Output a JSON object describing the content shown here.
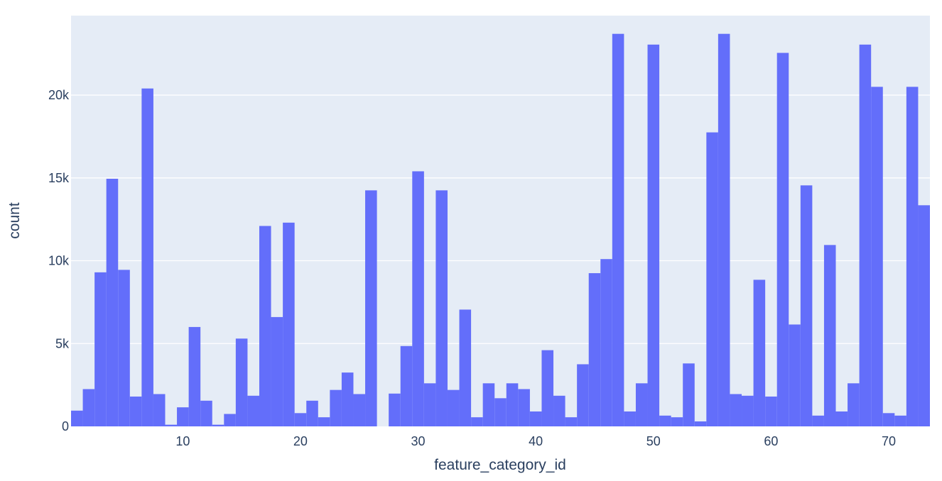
{
  "chart_data": {
    "type": "bar",
    "xlabel": "feature_category_id",
    "ylabel": "count",
    "xlim": [
      0.5,
      73.5
    ],
    "ylim": [
      0,
      24800
    ],
    "grid": true,
    "bar_color": "#636efa",
    "plot_bg": "#e5ecf6",
    "text_color": "#2a3f5f",
    "x_ticks": [
      10,
      20,
      30,
      40,
      50,
      60,
      70
    ],
    "x_tick_labels": [
      "10",
      "20",
      "30",
      "40",
      "50",
      "60",
      "70"
    ],
    "y_ticks": [
      0,
      5000,
      10000,
      15000,
      20000
    ],
    "y_tick_labels": [
      "0",
      "5k",
      "10k",
      "15k",
      "20k"
    ],
    "categories": [
      1,
      2,
      3,
      4,
      5,
      6,
      7,
      8,
      9,
      10,
      11,
      12,
      13,
      14,
      15,
      16,
      17,
      18,
      19,
      20,
      21,
      22,
      23,
      24,
      25,
      26,
      27,
      28,
      29,
      30,
      31,
      32,
      33,
      34,
      35,
      36,
      37,
      38,
      39,
      40,
      41,
      42,
      43,
      44,
      45,
      46,
      47,
      48,
      49,
      50,
      51,
      52,
      53,
      54,
      55,
      56,
      57,
      58,
      59,
      60,
      61,
      62,
      63,
      64,
      65,
      66,
      67,
      68,
      69,
      70,
      71,
      72,
      73
    ],
    "values": [
      950,
      2250,
      9300,
      14950,
      9450,
      1800,
      20400,
      1950,
      100,
      1150,
      6000,
      1550,
      100,
      750,
      5300,
      1850,
      12100,
      6600,
      12300,
      800,
      1550,
      550,
      2200,
      3250,
      1950,
      14250,
      0,
      1980,
      4850,
      15400,
      2600,
      14250,
      2200,
      7050,
      550,
      2600,
      1700,
      2600,
      2250,
      900,
      4600,
      1850,
      550,
      3750,
      9250,
      10100,
      23700,
      900,
      2600,
      23050,
      650,
      550,
      3800,
      300,
      17750,
      23700,
      1950,
      1850,
      8850,
      1800,
      22550,
      6150,
      14550,
      650,
      10950,
      900,
      2600,
      23050,
      20500,
      800,
      650,
      20500,
      13350
    ]
  }
}
